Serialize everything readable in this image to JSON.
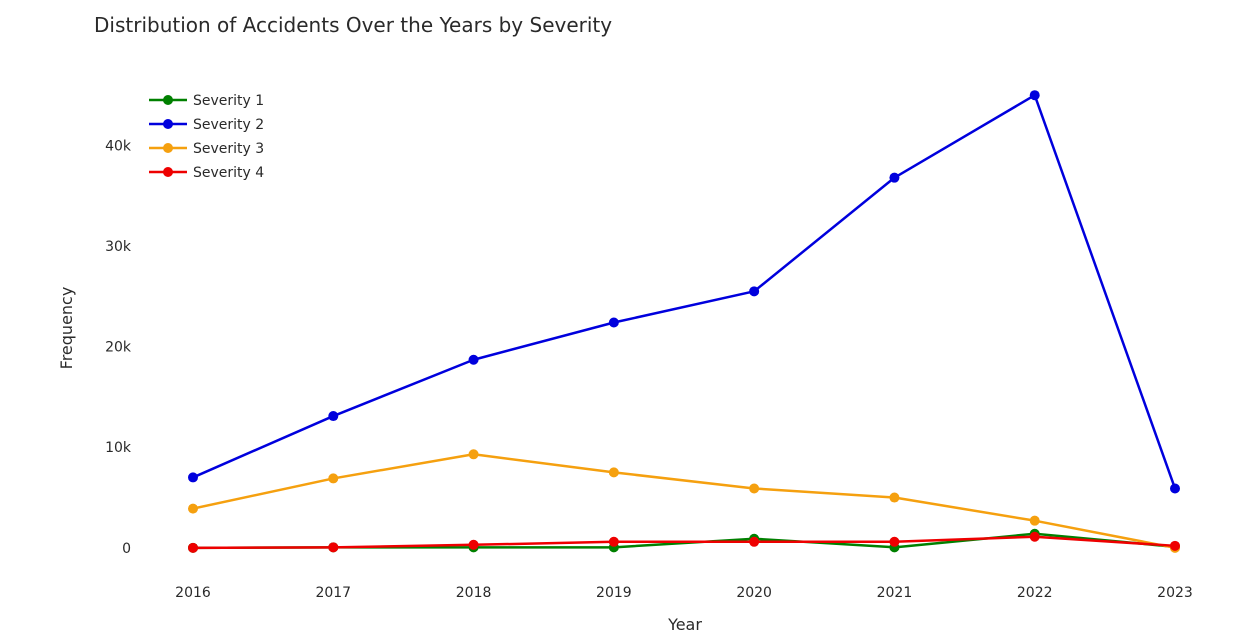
{
  "chart_data": {
    "type": "line",
    "title": "Distribution of Accidents Over the Years by Severity",
    "xlabel": "Year",
    "ylabel": "Frequency",
    "x": [
      "2016",
      "2017",
      "2018",
      "2019",
      "2020",
      "2021",
      "2022",
      "2023"
    ],
    "y_ticks": [
      0,
      10000,
      20000,
      30000,
      40000
    ],
    "y_tick_labels": [
      "0",
      "10k",
      "20k",
      "30k",
      "40k"
    ],
    "ylim": [
      -3000,
      48500
    ],
    "grid": false,
    "legend_position": "top-left",
    "series": [
      {
        "name": "Severity 1",
        "color": "#008000",
        "values": [
          0,
          50,
          50,
          50,
          900,
          50,
          1400,
          100
        ]
      },
      {
        "name": "Severity 2",
        "color": "#0000dd",
        "values": [
          7000,
          13100,
          18700,
          22400,
          25500,
          36800,
          45000,
          5900
        ]
      },
      {
        "name": "Severity 3",
        "color": "#f5a00f",
        "values": [
          3900,
          6900,
          9300,
          7500,
          5900,
          5000,
          2700,
          0
        ]
      },
      {
        "name": "Severity 4",
        "color": "#ee0000",
        "values": [
          0,
          50,
          300,
          600,
          600,
          600,
          1100,
          200
        ]
      }
    ]
  }
}
